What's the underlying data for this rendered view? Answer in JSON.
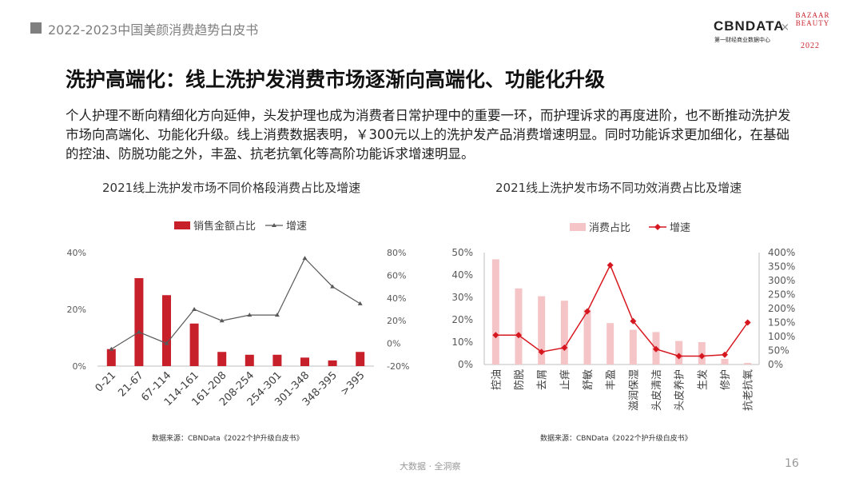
{
  "header": {
    "report_title": "2022-2023中国美颜消费趋势白皮书"
  },
  "logos": {
    "cbn_main": "CBNDATA",
    "cbn_sub": "第一财经商业数据中心",
    "times": "×",
    "bb_line1": "BAZAAR",
    "bb_line2": "BEAUTY",
    "bb_year": "2022"
  },
  "slide": {
    "title": "洗护高端化：线上洗护发消费市场逐渐向高端化、功能化升级",
    "paragraph": "个人护理不断向精细化方向延伸，头发护理也成为消费者日常护理中的重要一环，而护理诉求的再度进阶，也不断推动洗护发市场向高端化、功能化升级。线上消费数据表明，￥300元以上的洗护发产品消费增速明显。同时功能诉求更加细化，在基础的控油、防脱功能之外，丰盈、抗老抗氧化等高阶功能诉求增速明显。"
  },
  "footer": {
    "tagline": "大数据 · 全洞察",
    "page": "16"
  },
  "colors": {
    "accent_red": "#c8202a",
    "pink": "#f4c4c6",
    "gray_line": "#595959",
    "red_line": "#d7171f"
  },
  "chart_data": [
    {
      "type": "bar",
      "title": "2021线上洗护发市场不同价格段消费占比及增速",
      "categories": [
        "0-21",
        "21-67",
        "67-114",
        "114-161",
        "161-208",
        "208-254",
        "254-301",
        "301-348",
        "348-395",
        ">395"
      ],
      "series": [
        {
          "name": "销售金额占比",
          "type": "bar",
          "axis": "left",
          "values": [
            6,
            31,
            25,
            15,
            5,
            4,
            4,
            3,
            2,
            5
          ]
        },
        {
          "name": "增速",
          "type": "line",
          "axis": "right",
          "values": [
            -5,
            10,
            0,
            30,
            20,
            25,
            25,
            75,
            50,
            35
          ]
        }
      ],
      "y_left": {
        "ticks": [
          0,
          20,
          40
        ],
        "tick_labels": [
          "0%",
          "20%",
          "40%"
        ],
        "range": [
          0,
          40
        ]
      },
      "y_right": {
        "ticks": [
          -20,
          0,
          20,
          40,
          60,
          80
        ],
        "tick_labels": [
          "-20%",
          "0%",
          "20%",
          "40%",
          "60%",
          "80%"
        ],
        "range": [
          -20,
          80
        ]
      },
      "legend_position": "top",
      "source": "数据来源：CBNData《2022个护升级白皮书》"
    },
    {
      "type": "bar",
      "title": "2021线上洗护发市场不同功效消费占比及增速",
      "categories": [
        "控油",
        "防脱",
        "去屑",
        "止痒",
        "舒敏",
        "丰盈",
        "滋润保湿",
        "头皮清洁",
        "头皮养护",
        "生发",
        "修护",
        "抗老抗氧"
      ],
      "series": [
        {
          "name": "消费占比",
          "type": "bar",
          "axis": "left",
          "values": [
            47,
            34,
            30.5,
            28.5,
            24.5,
            18.5,
            15.5,
            14.5,
            10.5,
            10,
            2.5,
            0.7
          ]
        },
        {
          "name": "增速",
          "type": "line",
          "axis": "right",
          "values": [
            105,
            105,
            45,
            60,
            190,
            355,
            155,
            55,
            30,
            30,
            35,
            150
          ]
        }
      ],
      "y_left": {
        "ticks": [
          0,
          10,
          20,
          30,
          40,
          50
        ],
        "tick_labels": [
          "0%",
          "10%",
          "20%",
          "30%",
          "40%",
          "50%"
        ],
        "range": [
          0,
          50
        ]
      },
      "y_right": {
        "ticks": [
          0,
          50,
          100,
          150,
          200,
          250,
          300,
          350,
          400
        ],
        "tick_labels": [
          "0%",
          "50%",
          "100%",
          "150%",
          "200%",
          "250%",
          "300%",
          "350%",
          "400%"
        ],
        "range": [
          0,
          400
        ]
      },
      "legend_position": "top",
      "source": "数据来源：CBNData《2022个护升级白皮书》"
    }
  ]
}
